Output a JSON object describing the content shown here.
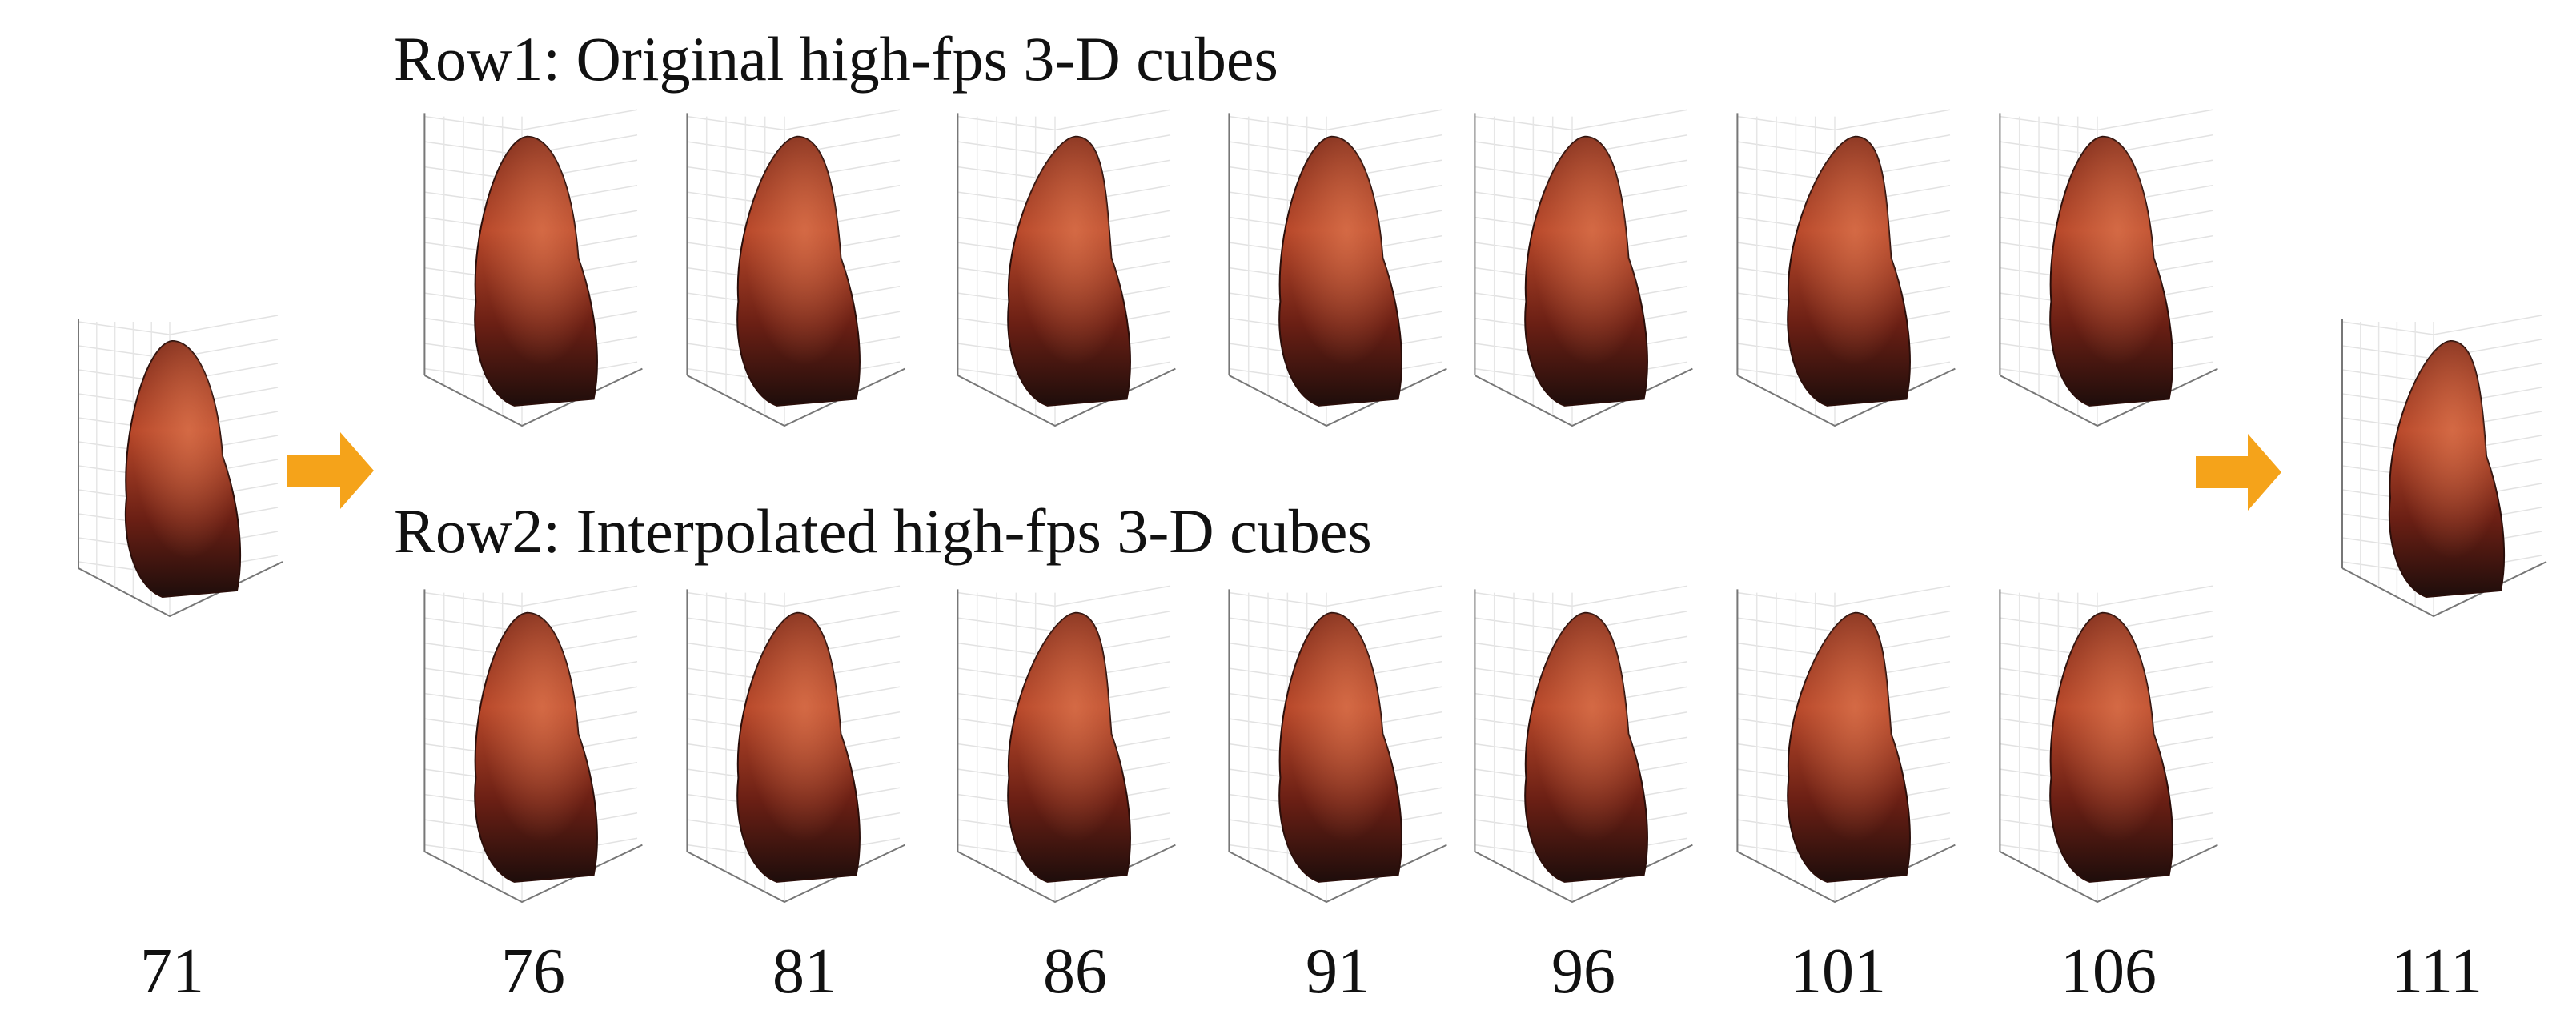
{
  "row1_title": "Row1: Original high-fps 3-D cubes",
  "row2_title": "Row2: Interpolated high-fps 3-D cubes",
  "frames": [
    "71",
    "76",
    "81",
    "86",
    "91",
    "96",
    "101",
    "106",
    "111"
  ]
}
